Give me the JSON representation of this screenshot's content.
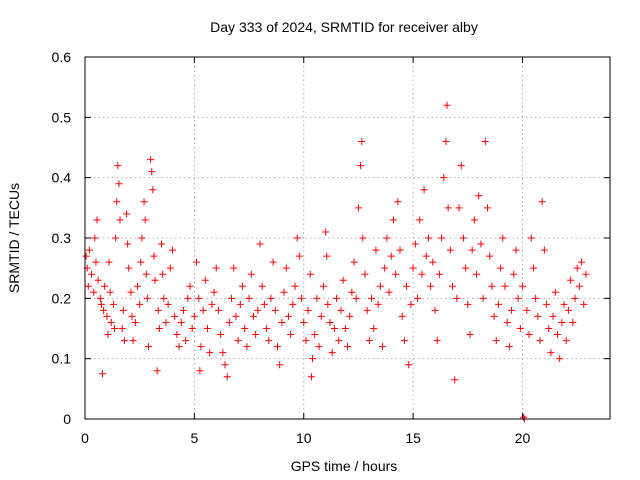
{
  "chart_data": {
    "type": "scatter",
    "title": "Day 333 of 2024, SRMTID for receiver alby",
    "xlabel": "GPS time / hours",
    "ylabel": "SRMTID / TECUs",
    "xlim": [
      0,
      24
    ],
    "ylim": [
      0,
      0.6
    ],
    "xticks": [
      0,
      5,
      10,
      15,
      20
    ],
    "yticks": [
      0,
      0.1,
      0.2,
      0.3,
      0.4,
      0.5,
      0.6
    ],
    "xtick_labels": [
      "0",
      "5",
      "10",
      "15",
      "20"
    ],
    "ytick_labels": [
      "0",
      "0.1",
      "0.2",
      "0.3",
      "0.4",
      "0.5",
      "0.6"
    ],
    "grid": true,
    "marker": "+",
    "color": "#ff0000",
    "series": [
      {
        "name": "SRMTID",
        "points": [
          [
            0.05,
            0.27
          ],
          [
            0.1,
            0.25
          ],
          [
            0.15,
            0.22
          ],
          [
            0.2,
            0.28
          ],
          [
            0.3,
            0.24
          ],
          [
            0.4,
            0.21
          ],
          [
            0.45,
            0.3
          ],
          [
            0.5,
            0.26
          ],
          [
            0.55,
            0.33
          ],
          [
            0.6,
            0.23
          ],
          [
            0.7,
            0.2
          ],
          [
            0.75,
            0.19
          ],
          [
            0.8,
            0.075
          ],
          [
            0.85,
            0.18
          ],
          [
            0.9,
            0.22
          ],
          [
            1.0,
            0.17
          ],
          [
            1.05,
            0.14
          ],
          [
            1.1,
            0.26
          ],
          [
            1.15,
            0.21
          ],
          [
            1.2,
            0.16
          ],
          [
            1.3,
            0.19
          ],
          [
            1.35,
            0.15
          ],
          [
            1.4,
            0.3
          ],
          [
            1.45,
            0.36
          ],
          [
            1.5,
            0.42
          ],
          [
            1.55,
            0.39
          ],
          [
            1.6,
            0.33
          ],
          [
            1.7,
            0.15
          ],
          [
            1.75,
            0.18
          ],
          [
            1.8,
            0.13
          ],
          [
            1.9,
            0.34
          ],
          [
            1.95,
            0.29
          ],
          [
            2.0,
            0.25
          ],
          [
            2.1,
            0.21
          ],
          [
            2.15,
            0.17
          ],
          [
            2.2,
            0.13
          ],
          [
            2.3,
            0.16
          ],
          [
            2.4,
            0.22
          ],
          [
            2.5,
            0.19
          ],
          [
            2.55,
            0.26
          ],
          [
            2.6,
            0.3
          ],
          [
            2.7,
            0.36
          ],
          [
            2.75,
            0.33
          ],
          [
            2.8,
            0.24
          ],
          [
            2.85,
            0.2
          ],
          [
            2.9,
            0.12
          ],
          [
            3.0,
            0.43
          ],
          [
            3.05,
            0.41
          ],
          [
            3.1,
            0.38
          ],
          [
            3.15,
            0.27
          ],
          [
            3.2,
            0.23
          ],
          [
            3.3,
            0.08
          ],
          [
            3.35,
            0.18
          ],
          [
            3.4,
            0.15
          ],
          [
            3.5,
            0.29
          ],
          [
            3.55,
            0.24
          ],
          [
            3.6,
            0.2
          ],
          [
            3.7,
            0.16
          ],
          [
            3.8,
            0.19
          ],
          [
            3.9,
            0.25
          ],
          [
            4.0,
            0.28
          ],
          [
            4.1,
            0.17
          ],
          [
            4.2,
            0.14
          ],
          [
            4.3,
            0.12
          ],
          [
            4.4,
            0.16
          ],
          [
            4.5,
            0.18
          ],
          [
            4.6,
            0.13
          ],
          [
            4.7,
            0.2
          ],
          [
            4.8,
            0.22
          ],
          [
            4.9,
            0.15
          ],
          [
            5.0,
            0.17
          ],
          [
            5.1,
            0.26
          ],
          [
            5.2,
            0.2
          ],
          [
            5.25,
            0.08
          ],
          [
            5.3,
            0.12
          ],
          [
            5.4,
            0.18
          ],
          [
            5.5,
            0.23
          ],
          [
            5.6,
            0.15
          ],
          [
            5.7,
            0.11
          ],
          [
            5.8,
            0.19
          ],
          [
            5.9,
            0.21
          ],
          [
            6.0,
            0.25
          ],
          [
            6.1,
            0.18
          ],
          [
            6.2,
            0.14
          ],
          [
            6.3,
            0.11
          ],
          [
            6.4,
            0.09
          ],
          [
            6.5,
            0.07
          ],
          [
            6.6,
            0.16
          ],
          [
            6.7,
            0.2
          ],
          [
            6.8,
            0.25
          ],
          [
            6.9,
            0.17
          ],
          [
            7.0,
            0.13
          ],
          [
            7.1,
            0.19
          ],
          [
            7.2,
            0.22
          ],
          [
            7.3,
            0.15
          ],
          [
            7.4,
            0.12
          ],
          [
            7.5,
            0.2
          ],
          [
            7.6,
            0.24
          ],
          [
            7.7,
            0.17
          ],
          [
            7.8,
            0.14
          ],
          [
            7.9,
            0.18
          ],
          [
            8.0,
            0.29
          ],
          [
            8.1,
            0.22
          ],
          [
            8.2,
            0.19
          ],
          [
            8.3,
            0.15
          ],
          [
            8.4,
            0.13
          ],
          [
            8.5,
            0.2
          ],
          [
            8.6,
            0.26
          ],
          [
            8.7,
            0.18
          ],
          [
            8.8,
            0.12
          ],
          [
            8.9,
            0.09
          ],
          [
            9.0,
            0.16
          ],
          [
            9.1,
            0.21
          ],
          [
            9.2,
            0.25
          ],
          [
            9.3,
            0.17
          ],
          [
            9.4,
            0.14
          ],
          [
            9.5,
            0.19
          ],
          [
            9.6,
            0.22
          ],
          [
            9.7,
            0.3
          ],
          [
            9.8,
            0.27
          ],
          [
            9.9,
            0.2
          ],
          [
            10.0,
            0.16
          ],
          [
            10.1,
            0.13
          ],
          [
            10.2,
            0.18
          ],
          [
            10.3,
            0.24
          ],
          [
            10.35,
            0.07
          ],
          [
            10.4,
            0.1
          ],
          [
            10.5,
            0.14
          ],
          [
            10.6,
            0.2
          ],
          [
            10.7,
            0.12
          ],
          [
            10.8,
            0.17
          ],
          [
            10.9,
            0.22
          ],
          [
            11.0,
            0.31
          ],
          [
            11.05,
            0.27
          ],
          [
            11.1,
            0.19
          ],
          [
            11.2,
            0.16
          ],
          [
            11.3,
            0.11
          ],
          [
            11.4,
            0.15
          ],
          [
            11.5,
            0.2
          ],
          [
            11.6,
            0.13
          ],
          [
            11.7,
            0.18
          ],
          [
            11.8,
            0.23
          ],
          [
            11.9,
            0.15
          ],
          [
            12.0,
            0.12
          ],
          [
            12.1,
            0.17
          ],
          [
            12.2,
            0.21
          ],
          [
            12.3,
            0.26
          ],
          [
            12.4,
            0.2
          ],
          [
            12.5,
            0.35
          ],
          [
            12.6,
            0.42
          ],
          [
            12.65,
            0.46
          ],
          [
            12.7,
            0.3
          ],
          [
            12.8,
            0.24
          ],
          [
            12.9,
            0.18
          ],
          [
            13.0,
            0.13
          ],
          [
            13.1,
            0.2
          ],
          [
            13.2,
            0.15
          ],
          [
            13.3,
            0.28
          ],
          [
            13.4,
            0.19
          ],
          [
            13.5,
            0.22
          ],
          [
            13.6,
            0.12
          ],
          [
            13.7,
            0.25
          ],
          [
            13.8,
            0.3
          ],
          [
            13.9,
            0.21
          ],
          [
            14.0,
            0.27
          ],
          [
            14.1,
            0.33
          ],
          [
            14.2,
            0.24
          ],
          [
            14.3,
            0.36
          ],
          [
            14.4,
            0.28
          ],
          [
            14.5,
            0.17
          ],
          [
            14.6,
            0.13
          ],
          [
            14.7,
            0.22
          ],
          [
            14.8,
            0.09
          ],
          [
            14.9,
            0.19
          ],
          [
            15.0,
            0.25
          ],
          [
            15.1,
            0.29
          ],
          [
            15.2,
            0.2
          ],
          [
            15.3,
            0.33
          ],
          [
            15.4,
            0.24
          ],
          [
            15.5,
            0.38
          ],
          [
            15.6,
            0.27
          ],
          [
            15.7,
            0.3
          ],
          [
            15.8,
            0.22
          ],
          [
            15.9,
            0.26
          ],
          [
            16.0,
            0.18
          ],
          [
            16.1,
            0.13
          ],
          [
            16.2,
            0.24
          ],
          [
            16.3,
            0.3
          ],
          [
            16.4,
            0.4
          ],
          [
            16.5,
            0.46
          ],
          [
            16.55,
            0.52
          ],
          [
            16.6,
            0.35
          ],
          [
            16.7,
            0.28
          ],
          [
            16.8,
            0.22
          ],
          [
            16.9,
            0.065
          ],
          [
            17.0,
            0.2
          ],
          [
            17.1,
            0.35
          ],
          [
            17.2,
            0.42
          ],
          [
            17.3,
            0.3
          ],
          [
            17.4,
            0.25
          ],
          [
            17.5,
            0.19
          ],
          [
            17.6,
            0.14
          ],
          [
            17.7,
            0.28
          ],
          [
            17.8,
            0.33
          ],
          [
            17.9,
            0.24
          ],
          [
            18.0,
            0.37
          ],
          [
            18.1,
            0.29
          ],
          [
            18.2,
            0.2
          ],
          [
            18.3,
            0.46
          ],
          [
            18.4,
            0.35
          ],
          [
            18.5,
            0.27
          ],
          [
            18.6,
            0.22
          ],
          [
            18.7,
            0.17
          ],
          [
            18.8,
            0.13
          ],
          [
            18.9,
            0.19
          ],
          [
            19.0,
            0.25
          ],
          [
            19.1,
            0.3
          ],
          [
            19.2,
            0.22
          ],
          [
            19.3,
            0.16
          ],
          [
            19.4,
            0.12
          ],
          [
            19.5,
            0.18
          ],
          [
            19.6,
            0.24
          ],
          [
            19.7,
            0.28
          ],
          [
            19.8,
            0.2
          ],
          [
            19.9,
            0.15
          ],
          [
            20.0,
            0.22
          ],
          [
            20.05,
            0.003
          ],
          [
            20.1,
            0.0
          ],
          [
            20.2,
            0.18
          ],
          [
            20.3,
            0.14
          ],
          [
            20.4,
            0.3
          ],
          [
            20.5,
            0.25
          ],
          [
            20.6,
            0.2
          ],
          [
            20.7,
            0.17
          ],
          [
            20.8,
            0.13
          ],
          [
            20.9,
            0.36
          ],
          [
            21.0,
            0.28
          ],
          [
            21.1,
            0.19
          ],
          [
            21.2,
            0.15
          ],
          [
            21.3,
            0.11
          ],
          [
            21.4,
            0.17
          ],
          [
            21.5,
            0.21
          ],
          [
            21.6,
            0.14
          ],
          [
            21.7,
            0.1
          ],
          [
            21.8,
            0.16
          ],
          [
            21.9,
            0.19
          ],
          [
            22.0,
            0.13
          ],
          [
            22.1,
            0.18
          ],
          [
            22.2,
            0.23
          ],
          [
            22.3,
            0.16
          ],
          [
            22.4,
            0.2
          ],
          [
            22.5,
            0.25
          ],
          [
            22.6,
            0.22
          ],
          [
            22.7,
            0.26
          ],
          [
            22.8,
            0.19
          ],
          [
            22.9,
            0.24
          ]
        ]
      }
    ]
  }
}
